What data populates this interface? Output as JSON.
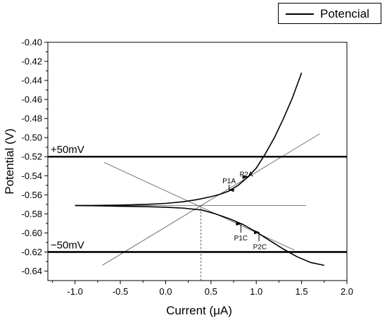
{
  "chart_data": {
    "type": "line",
    "title": "",
    "xlabel": "Current (μA)",
    "ylabel": "Potential (V)",
    "xlim": [
      -1.3,
      2.0
    ],
    "ylim": [
      -0.65,
      -0.4
    ],
    "x_ticks": [
      -1.0,
      -0.5,
      0.0,
      0.5,
      1.0,
      1.5,
      2.0
    ],
    "x_tick_labels": [
      "-1.0",
      "-0.5",
      "0.0",
      "0.5",
      "1.0",
      "1.5",
      "2.0"
    ],
    "y_ticks": [
      -0.64,
      -0.62,
      -0.6,
      -0.58,
      -0.56,
      -0.54,
      -0.52,
      -0.5,
      -0.48,
      -0.46,
      -0.44,
      -0.42,
      -0.4
    ],
    "y_tick_labels": [
      "-0.64",
      "-0.62",
      "-0.60",
      "-0.58",
      "-0.56",
      "-0.54",
      "-0.52",
      "-0.50",
      "-0.48",
      "-0.46",
      "-0.44",
      "-0.42",
      "-0.40"
    ],
    "grid": false,
    "legend_position": "top-right",
    "legend": [
      {
        "name": "Potencial",
        "color": "#000000"
      }
    ],
    "series": [
      {
        "name": "Potencial",
        "branch": "anodic",
        "x": [
          -1.0,
          -0.8,
          -0.5,
          -0.2,
          0.0,
          0.2,
          0.35,
          0.5,
          0.6,
          0.7,
          0.8,
          0.9,
          1.0,
          1.1,
          1.2,
          1.3,
          1.4,
          1.5
        ],
        "y": [
          -0.5713,
          -0.5712,
          -0.5708,
          -0.57,
          -0.569,
          -0.5672,
          -0.565,
          -0.562,
          -0.5595,
          -0.556,
          -0.55,
          -0.542,
          -0.532,
          -0.517,
          -0.5,
          -0.48,
          -0.458,
          -0.432
        ]
      },
      {
        "name": "Potencial",
        "branch": "cathodic",
        "x": [
          -1.0,
          -0.8,
          -0.5,
          -0.2,
          0.0,
          0.2,
          0.4,
          0.55,
          0.7,
          0.85,
          1.0,
          1.15,
          1.3,
          1.45,
          1.6,
          1.75
        ],
        "y": [
          -0.5713,
          -0.5715,
          -0.572,
          -0.5725,
          -0.573,
          -0.574,
          -0.576,
          -0.58,
          -0.585,
          -0.591,
          -0.599,
          -0.608,
          -0.617,
          -0.625,
          -0.631,
          -0.634
        ]
      }
    ],
    "reference_lines": [
      {
        "kind": "horizontal",
        "y": -0.52,
        "weight": "bold",
        "label": "+50mV",
        "label_x": -1.27
      },
      {
        "kind": "horizontal",
        "y": -0.62,
        "weight": "bold",
        "label": "−50mV",
        "label_x": -1.27
      },
      {
        "kind": "horizontal",
        "y": -0.5713,
        "x_range": [
          -1.0,
          1.55
        ],
        "weight": "thin",
        "label": ""
      },
      {
        "kind": "vertical",
        "x": 0.39,
        "y_range": [
          -0.65,
          -0.5713
        ],
        "style": "dashed",
        "label": ""
      }
    ],
    "tafel_lines": [
      {
        "points": [
          [
            -0.7,
            -0.634
          ],
          [
            1.7,
            -0.496
          ]
        ]
      },
      {
        "points": [
          [
            -0.68,
            -0.526
          ],
          [
            1.42,
            -0.618
          ]
        ]
      }
    ],
    "annotations": [
      {
        "text": "P1A",
        "x": 0.7,
        "y": -0.5555,
        "text_x": 0.7,
        "text_y": -0.548,
        "direction": "down"
      },
      {
        "text": "P2A",
        "x": 0.9,
        "y": -0.542,
        "text_x": 0.89,
        "text_y": -0.541,
        "direction": "down"
      },
      {
        "text": "P1C",
        "x": 0.83,
        "y": -0.5895,
        "text_x": 0.83,
        "text_y": -0.608,
        "direction": "up"
      },
      {
        "text": "P2C",
        "x": 1.03,
        "y": -0.5985,
        "text_x": 1.04,
        "text_y": -0.617,
        "direction": "up"
      }
    ]
  }
}
